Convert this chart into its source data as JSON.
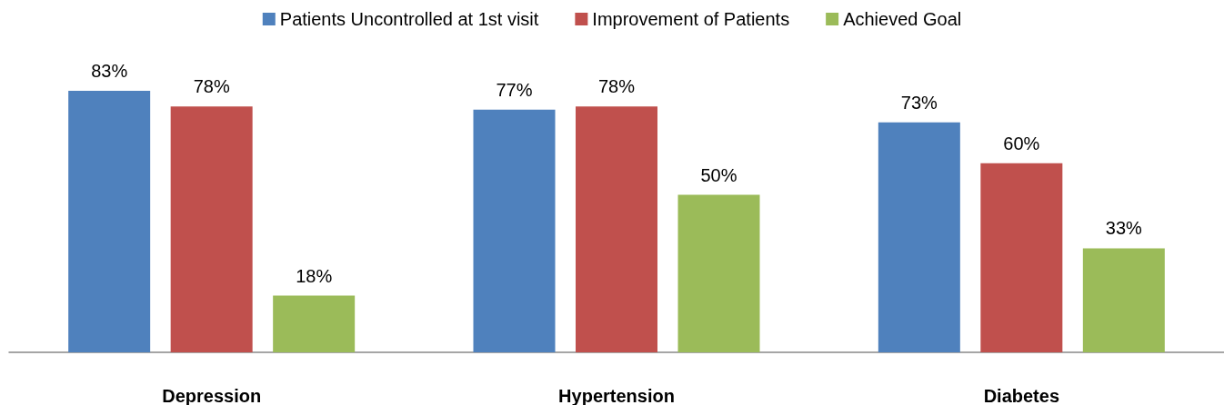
{
  "chart_data": {
    "type": "bar",
    "categories": [
      "Depression",
      "Hypertension",
      "Diabetes"
    ],
    "series": [
      {
        "name": "Patients Uncontrolled at 1st visit",
        "color": "#4f81bd",
        "values": [
          83,
          77,
          73
        ],
        "value_labels": [
          "83%",
          "77%",
          "73%"
        ]
      },
      {
        "name": "Improvement of Patients",
        "color": "#c0504d",
        "values": [
          78,
          78,
          60
        ],
        "value_labels": [
          "78%",
          "78%",
          "60%"
        ]
      },
      {
        "name": "Achieved Goal",
        "color": "#9bbb59",
        "values": [
          18,
          50,
          33
        ],
        "value_labels": [
          "18%",
          "50%",
          "33%"
        ]
      }
    ],
    "legend": "top"
  }
}
